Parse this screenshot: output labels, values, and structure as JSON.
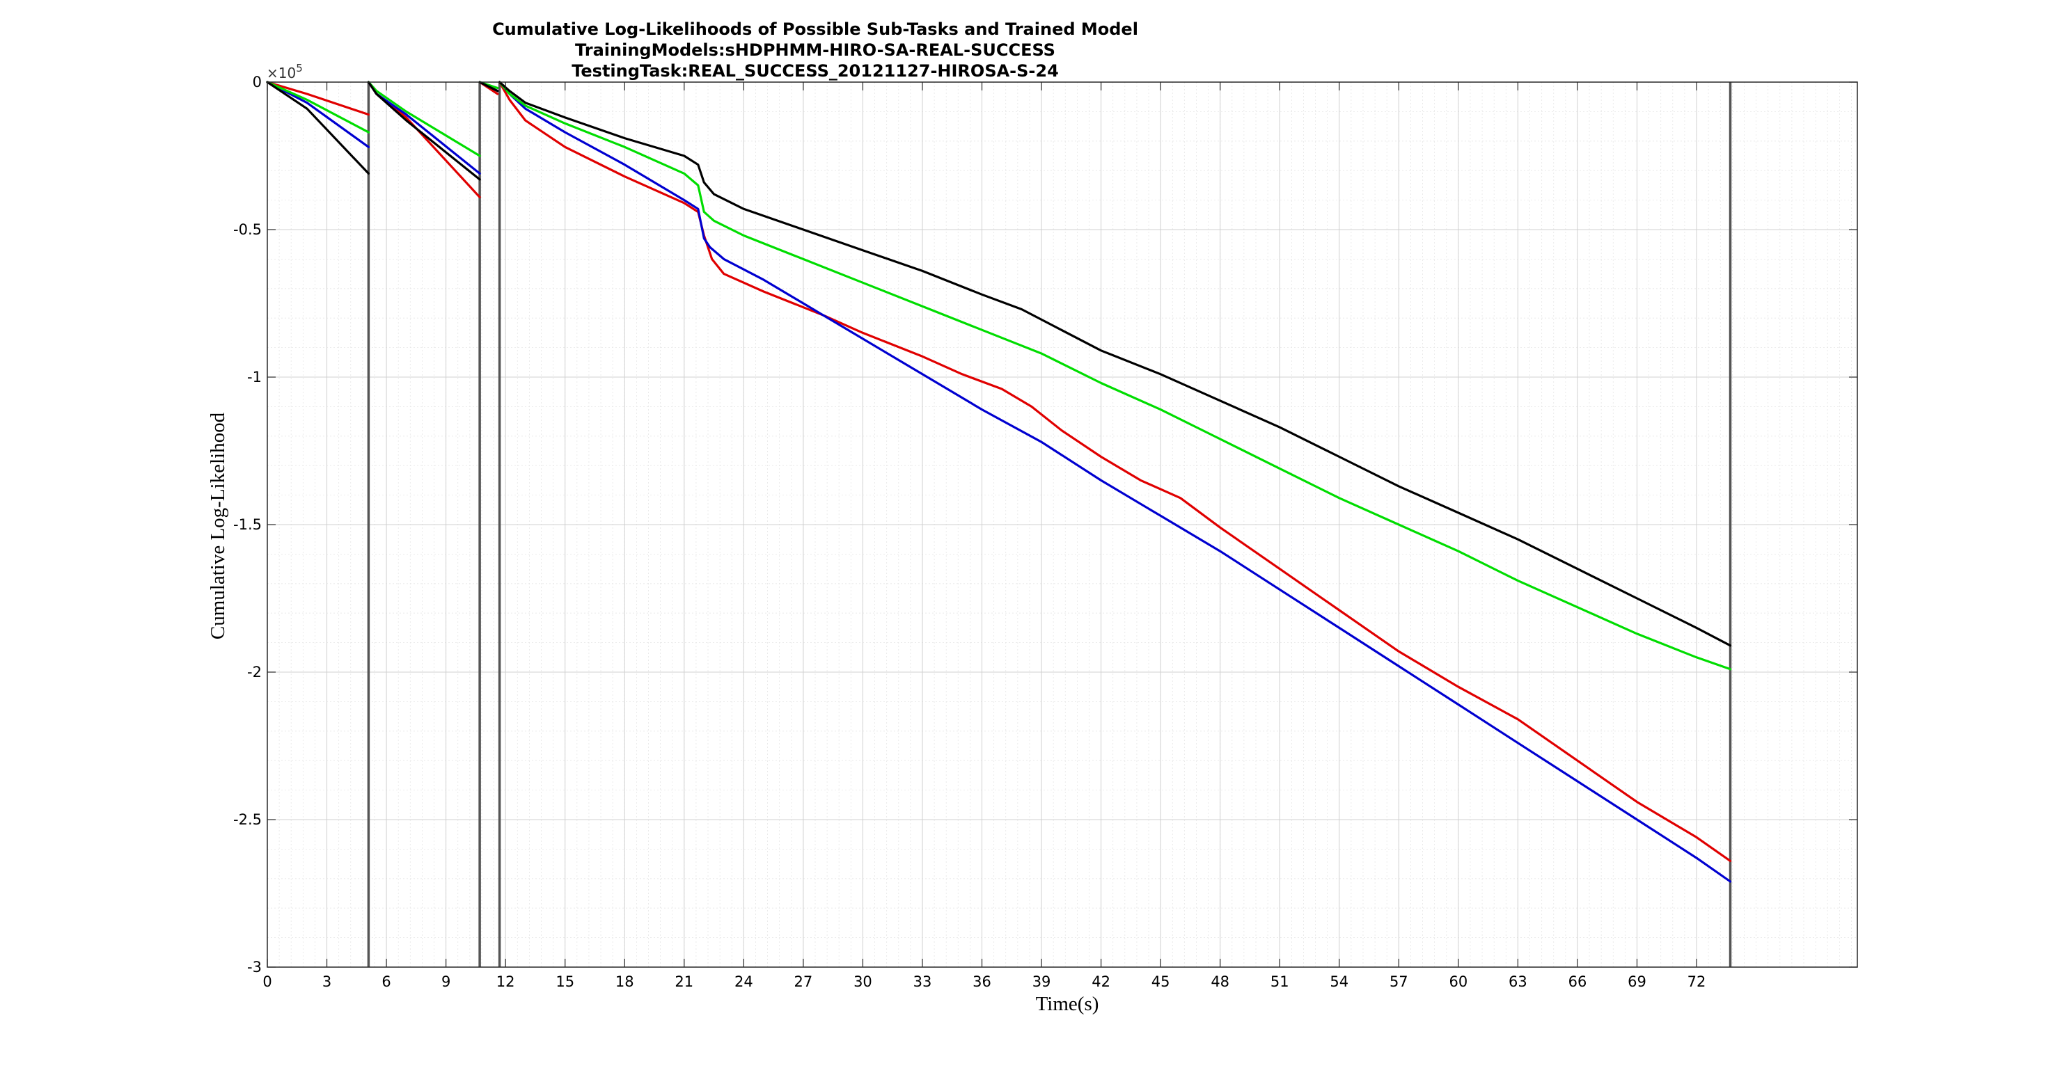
{
  "chart_data": {
    "type": "line",
    "title": [
      "Cumulative Log-Likelihoods of Possible Sub-Tasks and Trained Model",
      "TrainingModels:sHDPHMM-HIRO-SA-REAL-SUCCESS",
      "TestingTask:REAL_SUCCESS_20121127-HIROSA-S-24"
    ],
    "xlabel": "Time(s)",
    "ylabel": "Cumulative Log-Likelihood",
    "y_exponent_label": "×10",
    "y_exponent_power": "5",
    "xlim": [
      0,
      80.1
    ],
    "ylim": [
      -3,
      0
    ],
    "x_ticks": [
      0,
      3,
      6,
      9,
      12,
      15,
      18,
      21,
      24,
      27,
      30,
      33,
      36,
      39,
      42,
      45,
      48,
      51,
      54,
      57,
      60,
      63,
      66,
      69,
      72
    ],
    "x_tick_labels": [
      "0",
      "3",
      "6",
      "9",
      "12",
      "15",
      "18",
      "21",
      "24",
      "27",
      "30",
      "33",
      "36",
      "39",
      "42",
      "45",
      "48",
      "51",
      "54",
      "57",
      "60",
      "63",
      "66",
      "69",
      "72"
    ],
    "y_ticks": [
      0,
      -0.5,
      -1,
      -1.5,
      -2,
      -2.5,
      -3
    ],
    "y_tick_labels": [
      "0",
      "-0.5",
      "-1",
      "-1.5",
      "-2",
      "-2.5",
      "-3"
    ],
    "grid": true,
    "minor_grid": true,
    "vertical_markers": [
      5.1,
      10.7,
      11.7,
      73.7
    ],
    "series": [
      {
        "color": "#e00000",
        "segments": [
          [
            [
              0,
              0
            ],
            [
              2,
              -0.04
            ],
            [
              5.1,
              -0.11
            ]
          ],
          [
            [
              5.1,
              0
            ],
            [
              5.5,
              -0.04
            ],
            [
              7,
              -0.12
            ],
            [
              10.7,
              -0.39
            ]
          ],
          [
            [
              10.7,
              0
            ],
            [
              11.6,
              -0.04
            ]
          ],
          [
            [
              11.7,
              0
            ],
            [
              12.2,
              -0.06
            ],
            [
              13,
              -0.13
            ],
            [
              15,
              -0.22
            ],
            [
              18,
              -0.32
            ],
            [
              21,
              -0.41
            ],
            [
              21.7,
              -0.44
            ],
            [
              22,
              -0.52
            ],
            [
              22.4,
              -0.6
            ],
            [
              23,
              -0.65
            ],
            [
              25,
              -0.71
            ],
            [
              28,
              -0.79
            ],
            [
              30,
              -0.85
            ],
            [
              33,
              -0.93
            ],
            [
              35,
              -0.99
            ],
            [
              37,
              -1.04
            ],
            [
              38.5,
              -1.1
            ],
            [
              40,
              -1.18
            ],
            [
              42,
              -1.27
            ],
            [
              44,
              -1.35
            ],
            [
              46,
              -1.41
            ],
            [
              48,
              -1.51
            ],
            [
              51,
              -1.65
            ],
            [
              54,
              -1.79
            ],
            [
              57,
              -1.93
            ],
            [
              60,
              -2.05
            ],
            [
              63,
              -2.16
            ],
            [
              66,
              -2.3
            ],
            [
              69,
              -2.44
            ],
            [
              72,
              -2.56
            ],
            [
              73.7,
              -2.64
            ]
          ]
        ]
      },
      {
        "color": "#0000d0",
        "segments": [
          [
            [
              0,
              0
            ],
            [
              2,
              -0.07
            ],
            [
              5.1,
              -0.22
            ]
          ],
          [
            [
              5.1,
              0
            ],
            [
              5.5,
              -0.04
            ],
            [
              7,
              -0.11
            ],
            [
              10.7,
              -0.31
            ]
          ],
          [
            [
              10.7,
              0
            ],
            [
              11.6,
              -0.03
            ]
          ],
          [
            [
              11.7,
              0
            ],
            [
              12.2,
              -0.04
            ],
            [
              13,
              -0.09
            ],
            [
              15,
              -0.17
            ],
            [
              18,
              -0.28
            ],
            [
              21,
              -0.4
            ],
            [
              21.7,
              -0.43
            ],
            [
              22,
              -0.53
            ],
            [
              22.3,
              -0.56
            ],
            [
              23,
              -0.6
            ],
            [
              25,
              -0.67
            ],
            [
              28,
              -0.79
            ],
            [
              30,
              -0.87
            ],
            [
              33,
              -0.99
            ],
            [
              36,
              -1.11
            ],
            [
              39,
              -1.22
            ],
            [
              42,
              -1.35
            ],
            [
              45,
              -1.47
            ],
            [
              48,
              -1.59
            ],
            [
              51,
              -1.72
            ],
            [
              54,
              -1.85
            ],
            [
              57,
              -1.98
            ],
            [
              60,
              -2.11
            ],
            [
              63,
              -2.24
            ],
            [
              66,
              -2.37
            ],
            [
              69,
              -2.5
            ],
            [
              72,
              -2.63
            ],
            [
              73.7,
              -2.71
            ]
          ]
        ]
      },
      {
        "color": "#00dd00",
        "segments": [
          [
            [
              0,
              0
            ],
            [
              2,
              -0.06
            ],
            [
              5.1,
              -0.17
            ]
          ],
          [
            [
              5.1,
              0
            ],
            [
              5.5,
              -0.03
            ],
            [
              7,
              -0.1
            ],
            [
              10.7,
              -0.25
            ]
          ],
          [
            [
              10.7,
              0
            ],
            [
              11.6,
              -0.02
            ]
          ],
          [
            [
              11.7,
              0
            ],
            [
              12.2,
              -0.04
            ],
            [
              13,
              -0.08
            ],
            [
              15,
              -0.14
            ],
            [
              18,
              -0.22
            ],
            [
              21,
              -0.31
            ],
            [
              21.7,
              -0.35
            ],
            [
              22,
              -0.44
            ],
            [
              22.5,
              -0.47
            ],
            [
              24,
              -0.52
            ],
            [
              27,
              -0.6
            ],
            [
              30,
              -0.68
            ],
            [
              33,
              -0.76
            ],
            [
              36,
              -0.84
            ],
            [
              39,
              -0.92
            ],
            [
              42,
              -1.02
            ],
            [
              45,
              -1.11
            ],
            [
              48,
              -1.21
            ],
            [
              51,
              -1.31
            ],
            [
              54,
              -1.41
            ],
            [
              57,
              -1.5
            ],
            [
              60,
              -1.59
            ],
            [
              63,
              -1.69
            ],
            [
              66,
              -1.78
            ],
            [
              69,
              -1.87
            ],
            [
              72,
              -1.95
            ],
            [
              73.7,
              -1.99
            ]
          ]
        ]
      },
      {
        "color": "#000000",
        "segments": [
          [
            [
              0,
              0
            ],
            [
              2,
              -0.09
            ],
            [
              5.1,
              -0.31
            ]
          ],
          [
            [
              5.1,
              0
            ],
            [
              5.5,
              -0.04
            ],
            [
              7,
              -0.13
            ],
            [
              10.7,
              -0.33
            ]
          ],
          [
            [
              10.7,
              0
            ],
            [
              11.6,
              -0.03
            ]
          ],
          [
            [
              11.7,
              0
            ],
            [
              12.2,
              -0.03
            ],
            [
              13,
              -0.07
            ],
            [
              15,
              -0.12
            ],
            [
              18,
              -0.19
            ],
            [
              21,
              -0.25
            ],
            [
              21.7,
              -0.28
            ],
            [
              22,
              -0.34
            ],
            [
              22.5,
              -0.38
            ],
            [
              24,
              -0.43
            ],
            [
              27,
              -0.5
            ],
            [
              30,
              -0.57
            ],
            [
              33,
              -0.64
            ],
            [
              36,
              -0.72
            ],
            [
              38,
              -0.77
            ],
            [
              40,
              -0.84
            ],
            [
              42,
              -0.91
            ],
            [
              45,
              -0.99
            ],
            [
              48,
              -1.08
            ],
            [
              51,
              -1.17
            ],
            [
              54,
              -1.27
            ],
            [
              57,
              -1.37
            ],
            [
              60,
              -1.46
            ],
            [
              63,
              -1.55
            ],
            [
              66,
              -1.65
            ],
            [
              69,
              -1.75
            ],
            [
              72,
              -1.85
            ],
            [
              73.7,
              -1.91
            ]
          ]
        ]
      }
    ]
  }
}
